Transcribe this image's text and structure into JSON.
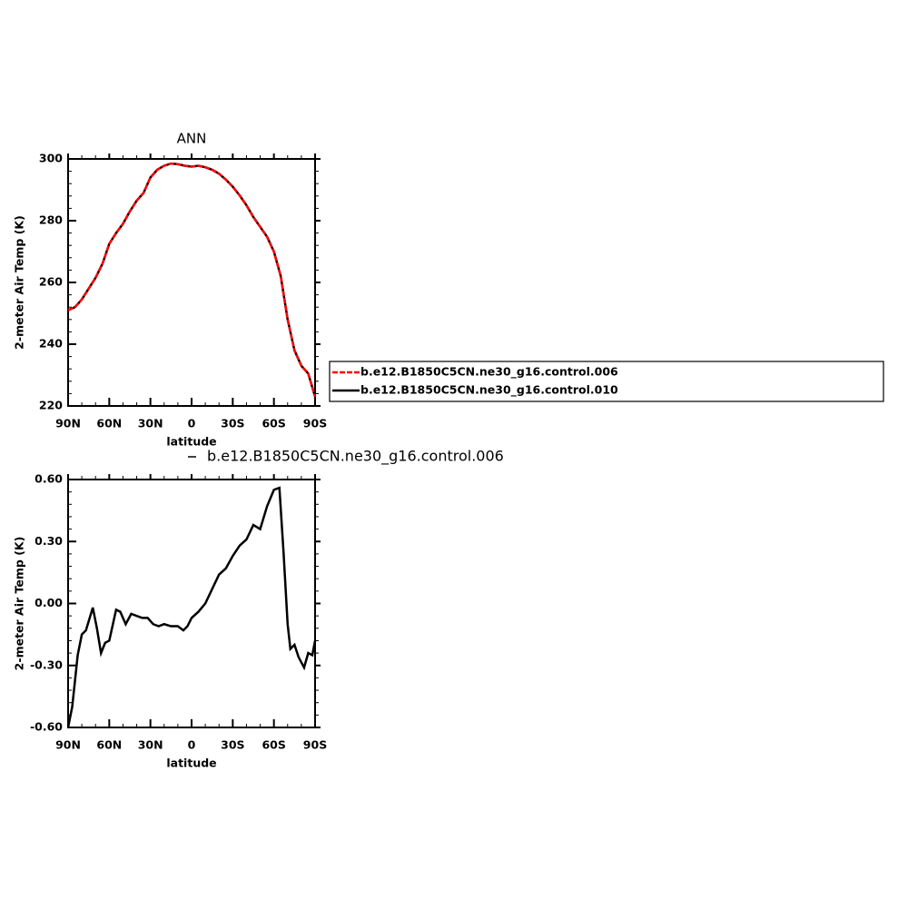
{
  "chart_data": [
    {
      "type": "line",
      "title": "ANN",
      "ylabel": "2-meter Air Temp (K)",
      "xlabel": "latitude",
      "xlim": [
        90,
        -90
      ],
      "xticks": [
        {
          "value": 90,
          "label": "90N"
        },
        {
          "value": 60,
          "label": "60N"
        },
        {
          "value": 30,
          "label": "30N"
        },
        0,
        {
          "value": -30,
          "label": "30S"
        },
        {
          "value": -60,
          "label": "60S"
        },
        {
          "value": -90,
          "label": "90S"
        }
      ],
      "ylim": [
        220,
        300
      ],
      "yticks": [
        220,
        240,
        260,
        280,
        300
      ],
      "legend": "right",
      "x": [
        90,
        85,
        80,
        75,
        70,
        65,
        60,
        55,
        50,
        45,
        40,
        35,
        30,
        25,
        20,
        15,
        10,
        5,
        0,
        -5,
        -10,
        -15,
        -20,
        -25,
        -30,
        -35,
        -40,
        -45,
        -50,
        -55,
        -60,
        -65,
        -70,
        -75,
        -80,
        -85,
        -90
      ],
      "series": [
        {
          "name": "b.e12.B1850C5CN.ne30_g16.control.006",
          "color": "#ff0000",
          "dashed": true,
          "values": [
            251,
            252,
            254.5,
            258,
            261.5,
            266,
            272.5,
            276,
            279,
            283,
            286.5,
            289,
            294,
            296.5,
            297.8,
            298.5,
            298.3,
            297.8,
            297.5,
            297.8,
            297.3,
            296.5,
            295.2,
            293.3,
            291,
            288.2,
            285,
            281.2,
            278,
            274.8,
            270,
            262,
            248,
            238,
            233,
            230.5,
            223
          ]
        },
        {
          "name": "b.e12.B1850C5CN.ne30_g16.control.010",
          "color": "#000000",
          "dashed": false,
          "values": [
            251,
            252,
            254.5,
            258,
            261.5,
            266,
            272.5,
            276,
            279,
            283,
            286.5,
            289,
            294,
            296.5,
            297.8,
            298.5,
            298.3,
            297.8,
            297.5,
            297.8,
            297.3,
            296.5,
            295.2,
            293.3,
            291,
            288.2,
            285,
            281.2,
            278,
            274.8,
            270,
            262,
            248,
            238,
            233,
            230.5,
            223
          ]
        }
      ]
    },
    {
      "type": "line",
      "ylabel": "2-meter Air Temp (K)",
      "xlabel": "latitude",
      "xlim": [
        90,
        -90
      ],
      "xticks": [
        {
          "value": 90,
          "label": "90N"
        },
        {
          "value": 60,
          "label": "60N"
        },
        {
          "value": 30,
          "label": "30N"
        },
        0,
        {
          "value": -30,
          "label": "30S"
        },
        {
          "value": -60,
          "label": "60S"
        },
        {
          "value": -90,
          "label": "90S"
        }
      ],
      "ylim": [
        -0.6,
        0.6
      ],
      "yticks": [
        {
          "value": -0.6,
          "label": "-0.60"
        },
        {
          "value": -0.3,
          "label": "-0.30"
        },
        {
          "value": 0,
          "label": "0.00"
        },
        {
          "value": 0.3,
          "label": "0.30"
        },
        {
          "value": 0.6,
          "label": "0.60"
        }
      ],
      "legend": "top",
      "x": [
        90,
        87,
        83,
        80,
        77,
        72,
        69,
        66,
        63,
        60,
        55,
        52,
        48,
        44,
        40,
        36,
        32,
        28,
        24,
        20,
        15,
        10,
        6,
        3,
        0,
        -5,
        -10,
        -15,
        -20,
        -25,
        -30,
        -35,
        -40,
        -45,
        -50,
        -55,
        -60,
        -64,
        -67,
        -70,
        -72,
        -75,
        -78,
        -82,
        -85,
        -88,
        -90
      ],
      "series": [
        {
          "name": "b.e12.B1850C5CN.ne30_g16.control.006",
          "color": "#000000",
          "dashed": false,
          "values": [
            -0.6,
            -0.5,
            -0.25,
            -0.15,
            -0.13,
            -0.02,
            -0.12,
            -0.24,
            -0.19,
            -0.18,
            -0.03,
            -0.04,
            -0.1,
            -0.05,
            -0.06,
            -0.07,
            -0.07,
            -0.1,
            -0.11,
            -0.1,
            -0.11,
            -0.11,
            -0.13,
            -0.11,
            -0.07,
            -0.04,
            0.0,
            0.07,
            0.14,
            0.17,
            0.23,
            0.28,
            0.31,
            0.38,
            0.36,
            0.47,
            0.55,
            0.56,
            0.25,
            -0.1,
            -0.22,
            -0.2,
            -0.26,
            -0.31,
            -0.24,
            -0.25,
            -0.18
          ]
        }
      ]
    }
  ]
}
